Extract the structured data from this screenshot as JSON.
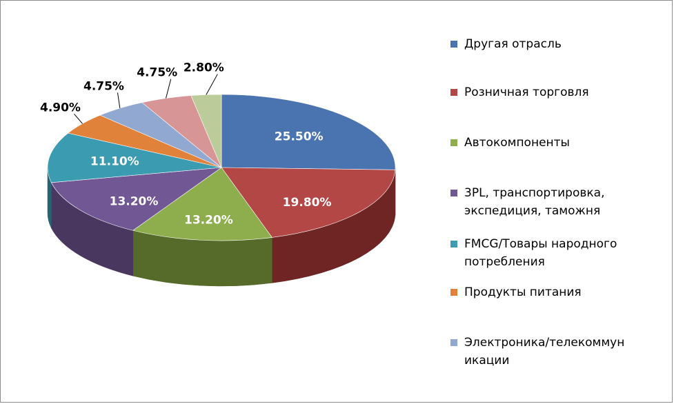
{
  "chart_data": {
    "type": "pie",
    "title": "",
    "three_d": true,
    "legend_position": "right",
    "slices": [
      {
        "label": "Другая отрасль",
        "value": 25.5,
        "display": "25.50%",
        "color": "#4a74b0",
        "side_color": "#2f4d7a"
      },
      {
        "label": "Розничная торговля",
        "value": 19.8,
        "display": "19.80%",
        "color": "#b24746",
        "side_color": "#6e2523"
      },
      {
        "label": "Автокомпоненты",
        "value": 13.2,
        "display": "13.20%",
        "color": "#8ead4c",
        "side_color": "#566b2a"
      },
      {
        "label": "3PL, транспортировка, экспедиция, таможня",
        "value": 13.2,
        "display": "13.20%",
        "color": "#715793",
        "side_color": "#4a375f"
      },
      {
        "label": "FMCG/Товары народного потребления",
        "value": 11.1,
        "display": "11.10%",
        "color": "#3b9bb1",
        "side_color": "#246574"
      },
      {
        "label": "Продукты питания",
        "value": 4.9,
        "display": "4.90%",
        "color": "#e1823a",
        "side_color": "#99561f"
      },
      {
        "label": "Электроника/телекоммуникации",
        "value": 4.75,
        "display": "4.75%",
        "color": "#91a9d1",
        "side_color": "#5f7395"
      },
      {
        "label": "",
        "value": 4.75,
        "display": "4.75%",
        "color": "#d79695",
        "side_color": "#955f5e"
      },
      {
        "label": "",
        "value": 2.8,
        "display": "2.80%",
        "color": "#bccb9a",
        "side_color": "#7f8c63"
      }
    ]
  },
  "legend": {
    "items": [
      {
        "label": "Другая отрасль",
        "color": "#4a74b0"
      },
      {
        "label": "Розничная торговля",
        "color": "#b24746"
      },
      {
        "label": "Автокомпоненты",
        "color": "#8ead4c"
      },
      {
        "label": "3PL, транспортировка,\nэкспедиция, таможня",
        "color": "#715793"
      },
      {
        "label": "FMCG/Товары народного\nпотребления",
        "color": "#3b9bb1"
      },
      {
        "label": "Продукты питания",
        "color": "#e1823a"
      },
      {
        "label": "Электроника/телекоммун\nикации",
        "color": "#91a9d1"
      }
    ]
  }
}
